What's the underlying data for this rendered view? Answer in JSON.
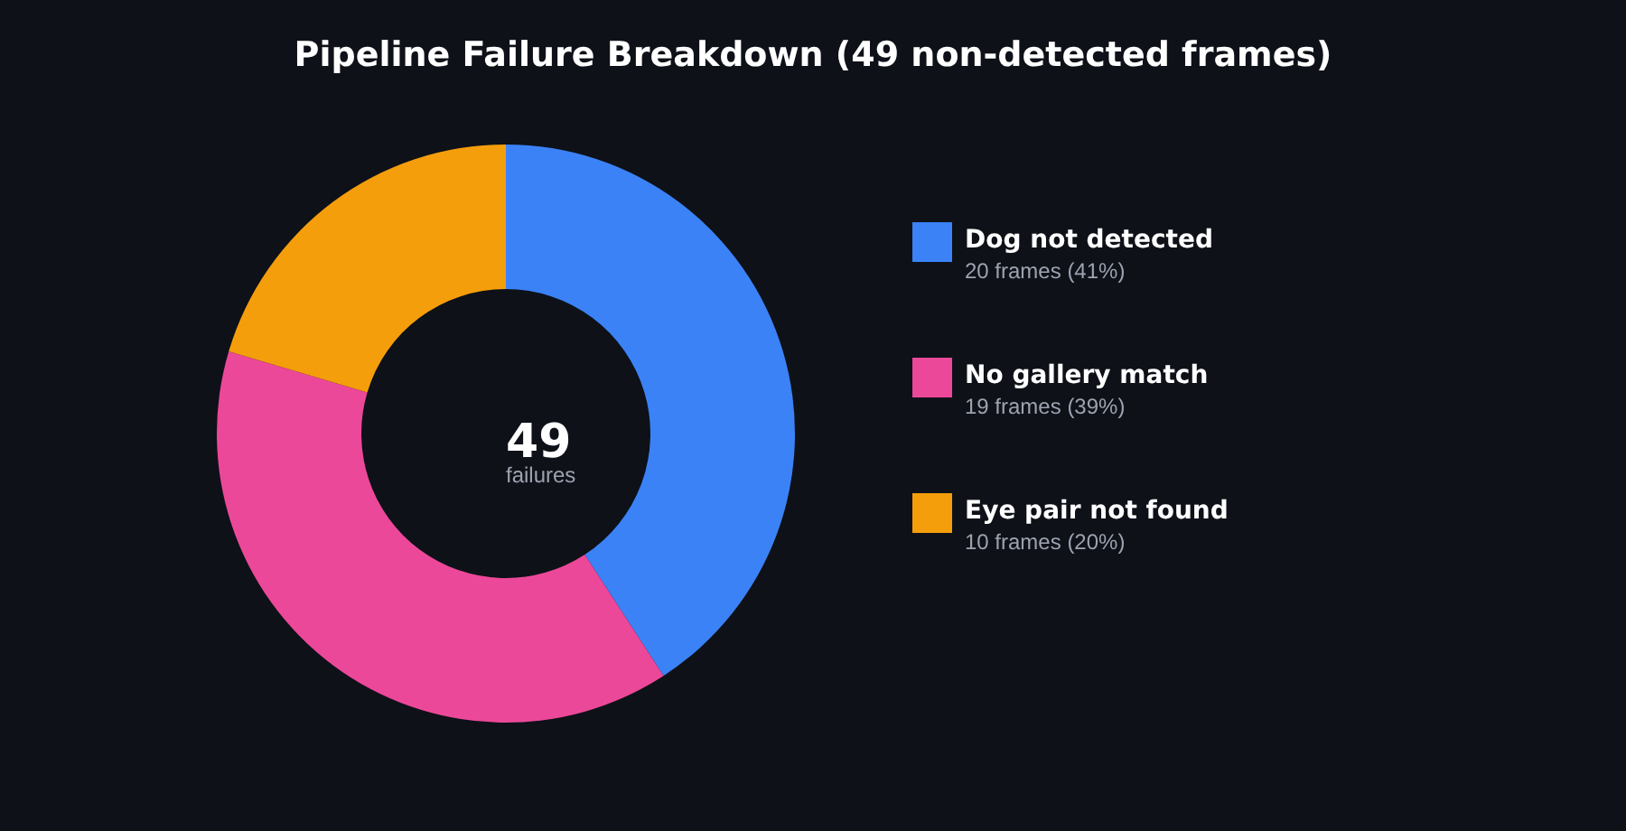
{
  "chart_data": {
    "type": "donut",
    "title": "Pipeline Failure Breakdown (49 non-detected frames)",
    "categories": [
      "Dog not detected",
      "No gallery match",
      "Eye pair not found"
    ],
    "values": [
      20,
      19,
      10
    ],
    "colors": [
      "#3b82f6",
      "#ec4899",
      "#f59e0b"
    ],
    "value_labels": [
      "20 frames (41%)",
      "19 frames (39%)",
      "10 frames (20%)"
    ],
    "annotations": [
      "49",
      "failures"
    ],
    "legend": "right"
  }
}
